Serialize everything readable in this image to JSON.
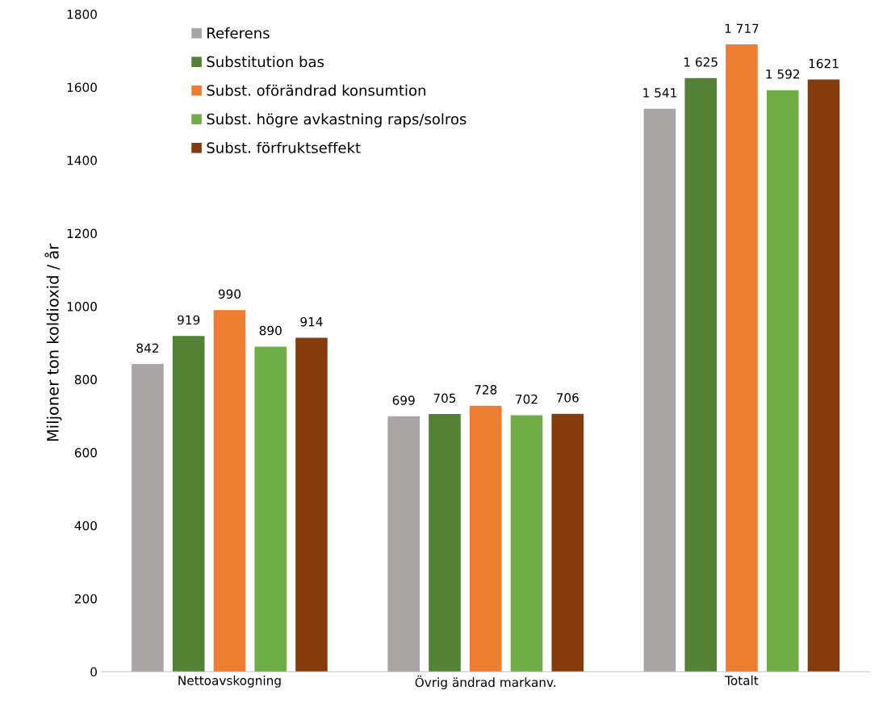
{
  "chart_data": {
    "type": "bar",
    "ylabel": "Miljoner ton koldioxid / år",
    "categories": [
      "Nettoavskogning",
      "Övrig ändrad markanv.",
      "Totalt"
    ],
    "series": [
      {
        "name": "Referens",
        "color": "#aaa5a5",
        "values": [
          842,
          699,
          1541
        ],
        "value_labels": [
          "842",
          "699",
          "1 541"
        ]
      },
      {
        "name": "Substitution bas",
        "color": "#548235",
        "values": [
          919,
          705,
          1625
        ],
        "value_labels": [
          "919",
          "705",
          "1 625"
        ]
      },
      {
        "name": "Subst. oförändrad konsumtion",
        "color": "#ed7d31",
        "values": [
          990,
          728,
          1717
        ],
        "value_labels": [
          "990",
          "728",
          "1 717"
        ]
      },
      {
        "name": "Subst. högre avkastning raps/solros",
        "color": "#70ad47",
        "values": [
          890,
          702,
          1592
        ],
        "value_labels": [
          "890",
          "702",
          "1 592"
        ]
      },
      {
        "name": "Subst. förfruktseffekt",
        "color": "#843c0c",
        "values": [
          914,
          706,
          1621
        ],
        "value_labels": [
          "914",
          "706",
          "1621"
        ]
      }
    ],
    "ylim": [
      0,
      1800
    ],
    "yticks": [
      0,
      200,
      400,
      600,
      800,
      1000,
      1200,
      1400,
      1600,
      1800
    ],
    "grid": false,
    "legend": "top left"
  }
}
